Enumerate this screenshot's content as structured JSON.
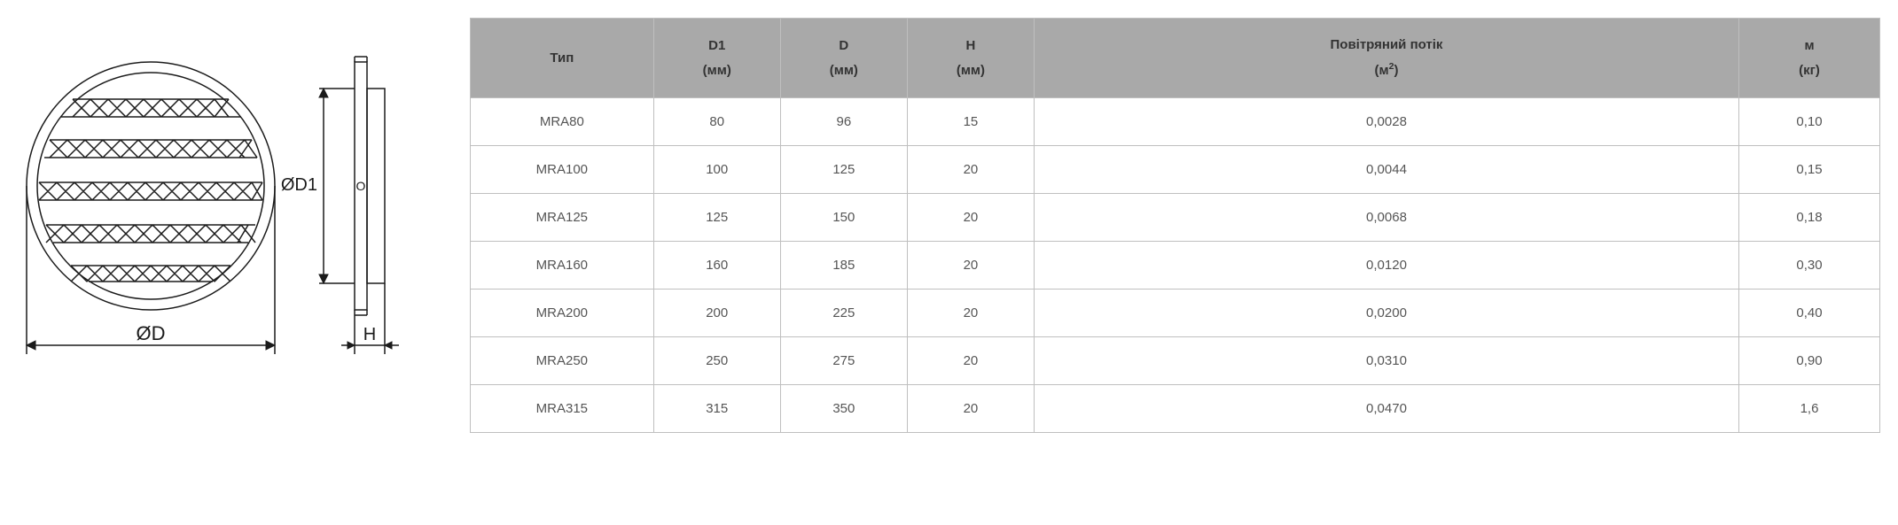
{
  "diagram": {
    "stroke_color": "#1b1b1b",
    "stroke_width": 1.5,
    "dim_label_D": "ØD",
    "dim_label_D1": "ØD1",
    "dim_label_H": "H",
    "circle_symbol": "O"
  },
  "table": {
    "header_bg": "#a9a9a9",
    "header_text": "#333333",
    "body_text": "#555555",
    "border_color": "#bfbfbf",
    "col_widths_pct": [
      13,
      9,
      9,
      9,
      50,
      10
    ],
    "columns": [
      {
        "top": "Тип",
        "sub": ""
      },
      {
        "top": "D1",
        "sub": "(мм)"
      },
      {
        "top": "D",
        "sub": "(мм)"
      },
      {
        "top": "H",
        "sub": "(мм)"
      },
      {
        "top": "Повітряний потік",
        "sub": "(м²)",
        "sup": true
      },
      {
        "top": "м",
        "sub": "(кг)"
      }
    ],
    "rows": [
      [
        "MRA80",
        "80",
        "96",
        "15",
        "0,0028",
        "0,10"
      ],
      [
        "MRA100",
        "100",
        "125",
        "20",
        "0,0044",
        "0,15"
      ],
      [
        "MRA125",
        "125",
        "150",
        "20",
        "0,0068",
        "0,18"
      ],
      [
        "MRA160",
        "160",
        "185",
        "20",
        "0,0120",
        "0,30"
      ],
      [
        "MRA200",
        "200",
        "225",
        "20",
        "0,0200",
        "0,40"
      ],
      [
        "MRA250",
        "250",
        "275",
        "20",
        "0,0310",
        "0,90"
      ],
      [
        "MRA315",
        "315",
        "350",
        "20",
        "0,0470",
        "1,6"
      ]
    ]
  }
}
